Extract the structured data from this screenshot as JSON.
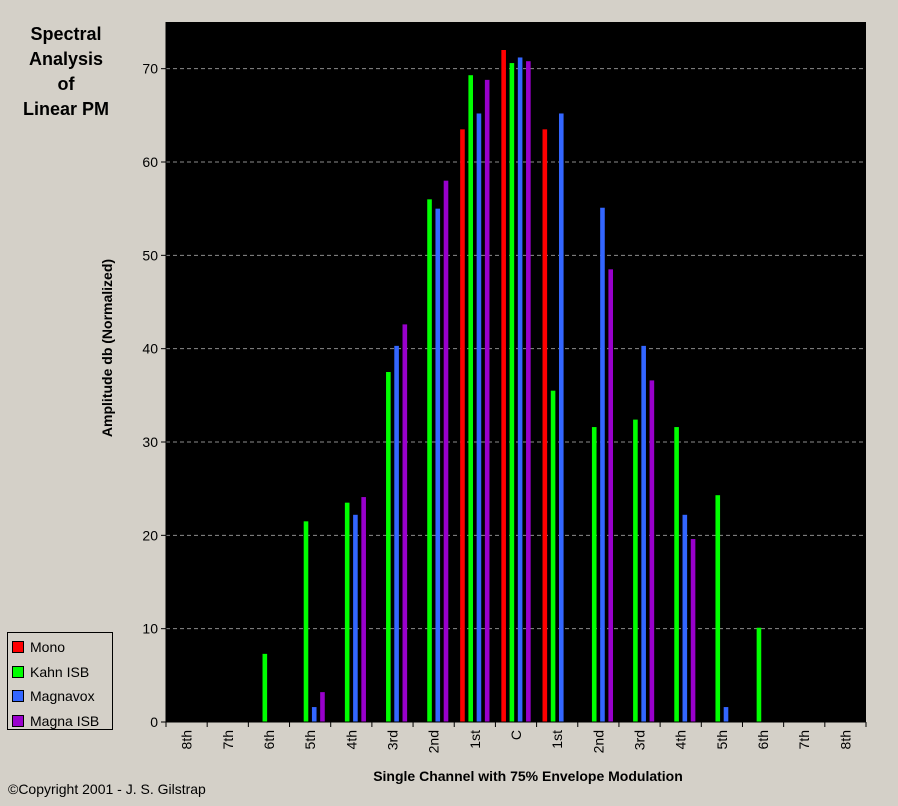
{
  "title_lines": [
    "Spectral",
    "Analysis",
    "of",
    "Linear PM"
  ],
  "copyright": "©Copyright 2001 - J. S. Gilstrap",
  "colors": {
    "background": "#d4d0c8",
    "plot_area": "#000000",
    "Mono": "#ff0000",
    "Kahn ISB": "#00ff00",
    "Magnavox": "#3366ff",
    "Magna ISB": "#9900cc"
  },
  "chart_data": {
    "type": "bar",
    "xlabel": "Single Channel with 75% Envelope Modulation",
    "ylabel": "Amplitude db (Normalized)",
    "ylim": [
      0,
      75
    ],
    "yticks": [
      0,
      10,
      20,
      30,
      40,
      50,
      60,
      70
    ],
    "grid": "horizontal dashed",
    "legend_position": "bottom-left",
    "categories": [
      "8th",
      "7th",
      "6th",
      "5th",
      "4th",
      "3rd",
      "2nd",
      "1st",
      "C",
      "1st",
      "2nd",
      "3rd",
      "4th",
      "5th",
      "6th",
      "7th",
      "8th"
    ],
    "series": [
      {
        "name": "Mono",
        "values": [
          0,
          0,
          0,
          0,
          0,
          0,
          0,
          63.5,
          72,
          63.5,
          0,
          0,
          0,
          0,
          0,
          0,
          0
        ]
      },
      {
        "name": "Kahn ISB",
        "values": [
          0,
          0,
          7.3,
          21.5,
          23.5,
          37.5,
          56,
          69.3,
          70.6,
          35.5,
          31.6,
          32.4,
          31.6,
          24.3,
          10.1,
          0,
          0
        ]
      },
      {
        "name": "Magnavox",
        "values": [
          0,
          0,
          0,
          1.6,
          22.2,
          40.3,
          55,
          65.2,
          71.2,
          65.2,
          55.1,
          40.3,
          22.2,
          1.6,
          0,
          0,
          0
        ]
      },
      {
        "name": "Magna ISB",
        "values": [
          0,
          0,
          0,
          3.2,
          24.1,
          42.6,
          58,
          68.8,
          70.8,
          0,
          48.5,
          36.6,
          19.6,
          0,
          0,
          0,
          0
        ]
      }
    ]
  }
}
